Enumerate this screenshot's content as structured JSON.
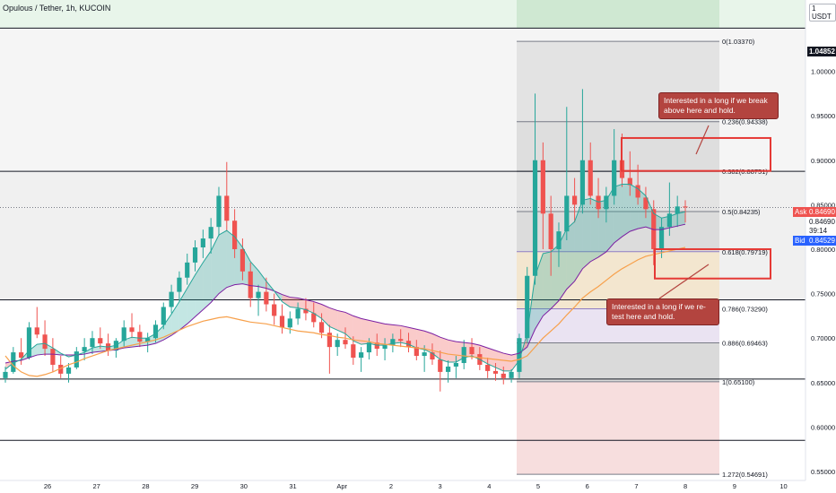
{
  "header": {
    "title": "Opulous / Tether, 1h, KUCOIN",
    "unit": "1 USDT"
  },
  "chart_data": {
    "type": "candlestick",
    "x_ticks": [
      "26",
      "27",
      "28",
      "29",
      "30",
      "31",
      "Apr",
      "2",
      "3",
      "4",
      "5",
      "6",
      "7",
      "8",
      "9",
      "10"
    ],
    "y_ticks": [
      "1.00000",
      "0.95000",
      "0.90000",
      "0.85000",
      "0.80000",
      "0.75000",
      "0.70000",
      "0.65000",
      "0.60000",
      "0.55000"
    ],
    "ylim": [
      0.545,
      1.06
    ],
    "price_tags": {
      "top_level": "1.04852",
      "ask_label": "Ask",
      "ask": "0.84690",
      "last": "0.84690",
      "countdown": "39:14",
      "bid_label": "Bid",
      "bid": "0.84529"
    },
    "fib_levels": [
      {
        "label": "0(1.03370)",
        "value": 1.0337
      },
      {
        "label": "0.236(0.94338)",
        "value": 0.94338
      },
      {
        "label": "0.382(0.88751)",
        "value": 0.88751
      },
      {
        "label": "0.5(0.84235)",
        "value": 0.84235
      },
      {
        "label": "0.618(0.79719)",
        "value": 0.79719
      },
      {
        "label": "0.786(0.73290)",
        "value": 0.7329
      },
      {
        "label": "0.886(0.69463)",
        "value": 0.69463
      },
      {
        "label": "1(0.65100)",
        "value": 0.651
      },
      {
        "label": "1.272(0.54691)",
        "value": 0.54691
      }
    ],
    "horizontal_lines": [
      1.04852,
      0.8875,
      0.743,
      0.654,
      0.585
    ],
    "annotations": [
      "Interested in a long if we break above here and hold.",
      "Interested in a long if we re-test here and hold."
    ],
    "candles": [
      [
        0.655,
        0.668,
        0.65,
        0.662
      ],
      [
        0.662,
        0.69,
        0.66,
        0.684
      ],
      [
        0.684,
        0.7,
        0.67,
        0.678
      ],
      [
        0.678,
        0.718,
        0.676,
        0.712
      ],
      [
        0.712,
        0.735,
        0.7,
        0.704
      ],
      [
        0.704,
        0.72,
        0.68,
        0.688
      ],
      [
        0.688,
        0.7,
        0.662,
        0.67
      ],
      [
        0.67,
        0.68,
        0.655,
        0.66
      ],
      [
        0.66,
        0.672,
        0.65,
        0.667
      ],
      [
        0.667,
        0.69,
        0.665,
        0.685
      ],
      [
        0.685,
        0.7,
        0.675,
        0.69
      ],
      [
        0.69,
        0.708,
        0.682,
        0.7
      ],
      [
        0.7,
        0.712,
        0.688,
        0.694
      ],
      [
        0.694,
        0.705,
        0.68,
        0.686
      ],
      [
        0.686,
        0.7,
        0.678,
        0.697
      ],
      [
        0.697,
        0.72,
        0.69,
        0.712
      ],
      [
        0.712,
        0.728,
        0.7,
        0.707
      ],
      [
        0.707,
        0.715,
        0.69,
        0.696
      ],
      [
        0.696,
        0.706,
        0.684,
        0.7
      ],
      [
        0.7,
        0.72,
        0.695,
        0.715
      ],
      [
        0.715,
        0.74,
        0.71,
        0.735
      ],
      [
        0.735,
        0.76,
        0.728,
        0.752
      ],
      [
        0.752,
        0.775,
        0.742,
        0.768
      ],
      [
        0.768,
        0.795,
        0.76,
        0.785
      ],
      [
        0.785,
        0.81,
        0.775,
        0.802
      ],
      [
        0.802,
        0.822,
        0.79,
        0.812
      ],
      [
        0.812,
        0.835,
        0.795,
        0.825
      ],
      [
        0.825,
        0.87,
        0.815,
        0.86
      ],
      [
        0.86,
        0.898,
        0.82,
        0.832
      ],
      [
        0.832,
        0.845,
        0.79,
        0.8
      ],
      [
        0.8,
        0.812,
        0.765,
        0.775
      ],
      [
        0.775,
        0.785,
        0.735,
        0.745
      ],
      [
        0.745,
        0.76,
        0.725,
        0.752
      ],
      [
        0.752,
        0.768,
        0.73,
        0.738
      ],
      [
        0.738,
        0.75,
        0.715,
        0.725
      ],
      [
        0.725,
        0.738,
        0.705,
        0.712
      ],
      [
        0.712,
        0.73,
        0.705,
        0.722
      ],
      [
        0.722,
        0.74,
        0.715,
        0.733
      ],
      [
        0.733,
        0.745,
        0.72,
        0.728
      ],
      [
        0.728,
        0.74,
        0.712,
        0.718
      ],
      [
        0.718,
        0.728,
        0.7,
        0.706
      ],
      [
        0.706,
        0.715,
        0.66,
        0.69
      ],
      [
        0.69,
        0.705,
        0.68,
        0.698
      ],
      [
        0.698,
        0.712,
        0.688,
        0.693
      ],
      [
        0.693,
        0.702,
        0.67,
        0.678
      ],
      [
        0.678,
        0.69,
        0.662,
        0.684
      ],
      [
        0.684,
        0.7,
        0.676,
        0.695
      ],
      [
        0.695,
        0.705,
        0.68,
        0.688
      ],
      [
        0.688,
        0.7,
        0.675,
        0.692
      ],
      [
        0.692,
        0.705,
        0.684,
        0.699
      ],
      [
        0.699,
        0.71,
        0.69,
        0.697
      ],
      [
        0.697,
        0.706,
        0.684,
        0.69
      ],
      [
        0.69,
        0.698,
        0.675,
        0.68
      ],
      [
        0.68,
        0.692,
        0.662,
        0.684
      ],
      [
        0.684,
        0.694,
        0.67,
        0.676
      ],
      [
        0.676,
        0.686,
        0.64,
        0.662
      ],
      [
        0.662,
        0.675,
        0.65,
        0.668
      ],
      [
        0.668,
        0.68,
        0.655,
        0.672
      ],
      [
        0.672,
        0.698,
        0.665,
        0.69
      ],
      [
        0.69,
        0.7,
        0.676,
        0.682
      ],
      [
        0.682,
        0.69,
        0.664,
        0.67
      ],
      [
        0.67,
        0.678,
        0.655,
        0.663
      ],
      [
        0.663,
        0.672,
        0.652,
        0.66
      ],
      [
        0.66,
        0.668,
        0.648,
        0.655
      ],
      [
        0.655,
        0.665,
        0.65,
        0.662
      ],
      [
        0.662,
        0.705,
        0.655,
        0.7
      ],
      [
        0.7,
        0.78,
        0.695,
        0.77
      ],
      [
        0.77,
        0.975,
        0.76,
        0.9
      ],
      [
        0.9,
        0.92,
        0.8,
        0.84
      ],
      [
        0.84,
        0.86,
        0.77,
        0.8
      ],
      [
        0.8,
        0.83,
        0.78,
        0.82
      ],
      [
        0.82,
        0.96,
        0.81,
        0.86
      ],
      [
        0.86,
        0.88,
        0.83,
        0.85
      ],
      [
        0.85,
        0.98,
        0.84,
        0.9
      ],
      [
        0.9,
        0.92,
        0.85,
        0.86
      ],
      [
        0.86,
        0.88,
        0.835,
        0.845
      ],
      [
        0.845,
        0.87,
        0.83,
        0.86
      ],
      [
        0.86,
        0.935,
        0.85,
        0.9
      ],
      [
        0.9,
        0.93,
        0.87,
        0.88
      ],
      [
        0.88,
        0.91,
        0.86,
        0.872
      ],
      [
        0.872,
        0.895,
        0.85,
        0.858
      ],
      [
        0.858,
        0.87,
        0.835,
        0.845
      ],
      [
        0.845,
        0.855,
        0.782,
        0.8
      ],
      [
        0.8,
        0.835,
        0.79,
        0.825
      ],
      [
        0.825,
        0.875,
        0.815,
        0.84
      ],
      [
        0.84,
        0.86,
        0.825,
        0.848
      ],
      [
        0.848,
        0.855,
        0.83,
        0.847
      ]
    ],
    "ema_fast": [
      0.665,
      0.672,
      0.676,
      0.686,
      0.693,
      0.694,
      0.689,
      0.683,
      0.679,
      0.681,
      0.684,
      0.689,
      0.691,
      0.69,
      0.692,
      0.698,
      0.701,
      0.7,
      0.7,
      0.705,
      0.714,
      0.727,
      0.741,
      0.756,
      0.771,
      0.785,
      0.798,
      0.816,
      0.821,
      0.814,
      0.802,
      0.786,
      0.776,
      0.764,
      0.753,
      0.741,
      0.735,
      0.734,
      0.732,
      0.728,
      0.722,
      0.713,
      0.709,
      0.705,
      0.697,
      0.693,
      0.694,
      0.692,
      0.692,
      0.694,
      0.695,
      0.693,
      0.689,
      0.687,
      0.683,
      0.676,
      0.673,
      0.673,
      0.678,
      0.68,
      0.676,
      0.671,
      0.667,
      0.663,
      0.663,
      0.675,
      0.705,
      0.77,
      0.795,
      0.797,
      0.805,
      0.823,
      0.831,
      0.855,
      0.857,
      0.853,
      0.855,
      0.87,
      0.873,
      0.873,
      0.868,
      0.86,
      0.84,
      0.835,
      0.837,
      0.84,
      0.842
    ],
    "ema_slow": [
      0.672,
      0.674,
      0.675,
      0.678,
      0.681,
      0.682,
      0.682,
      0.681,
      0.681,
      0.681,
      0.682,
      0.684,
      0.685,
      0.686,
      0.687,
      0.689,
      0.69,
      0.691,
      0.692,
      0.694,
      0.698,
      0.703,
      0.709,
      0.716,
      0.724,
      0.732,
      0.74,
      0.75,
      0.757,
      0.76,
      0.761,
      0.759,
      0.758,
      0.756,
      0.753,
      0.749,
      0.746,
      0.745,
      0.743,
      0.741,
      0.738,
      0.734,
      0.731,
      0.729,
      0.725,
      0.722,
      0.72,
      0.718,
      0.716,
      0.715,
      0.714,
      0.712,
      0.71,
      0.708,
      0.705,
      0.701,
      0.698,
      0.696,
      0.695,
      0.694,
      0.692,
      0.689,
      0.686,
      0.683,
      0.681,
      0.683,
      0.69,
      0.71,
      0.725,
      0.733,
      0.742,
      0.755,
      0.764,
      0.778,
      0.786,
      0.791,
      0.797,
      0.807,
      0.814,
      0.82,
      0.823,
      0.825,
      0.822,
      0.822,
      0.824,
      0.826,
      0.828
    ],
    "ema_200": [
      0.68,
      0.669,
      0.662,
      0.658,
      0.657,
      0.659,
      0.662,
      0.666,
      0.67,
      0.673,
      0.677,
      0.68,
      0.683,
      0.686,
      0.688,
      0.69,
      0.692,
      0.694,
      0.696,
      0.698,
      0.701,
      0.705,
      0.709,
      0.713,
      0.716,
      0.719,
      0.721,
      0.723,
      0.724,
      0.722,
      0.72,
      0.718,
      0.717,
      0.716,
      0.714,
      0.712,
      0.71,
      0.708,
      0.707,
      0.706,
      0.704,
      0.703,
      0.701,
      0.7,
      0.698,
      0.697,
      0.696,
      0.694,
      0.693,
      0.692,
      0.691,
      0.69,
      0.689,
      0.688,
      0.686,
      0.684,
      0.682,
      0.681,
      0.68,
      0.679,
      0.678,
      0.677,
      0.676,
      0.675,
      0.674,
      0.676,
      0.68,
      0.69,
      0.7,
      0.708,
      0.716,
      0.726,
      0.735,
      0.745,
      0.752,
      0.758,
      0.765,
      0.772,
      0.778,
      0.783,
      0.788,
      0.792,
      0.794,
      0.796,
      0.798,
      0.8,
      0.802
    ],
    "colors": {
      "up": "#26a69a",
      "down": "#ef5350",
      "ema_200": "#f7a04b",
      "highlight": "#e53935",
      "note_bg": "#b3443f"
    }
  }
}
